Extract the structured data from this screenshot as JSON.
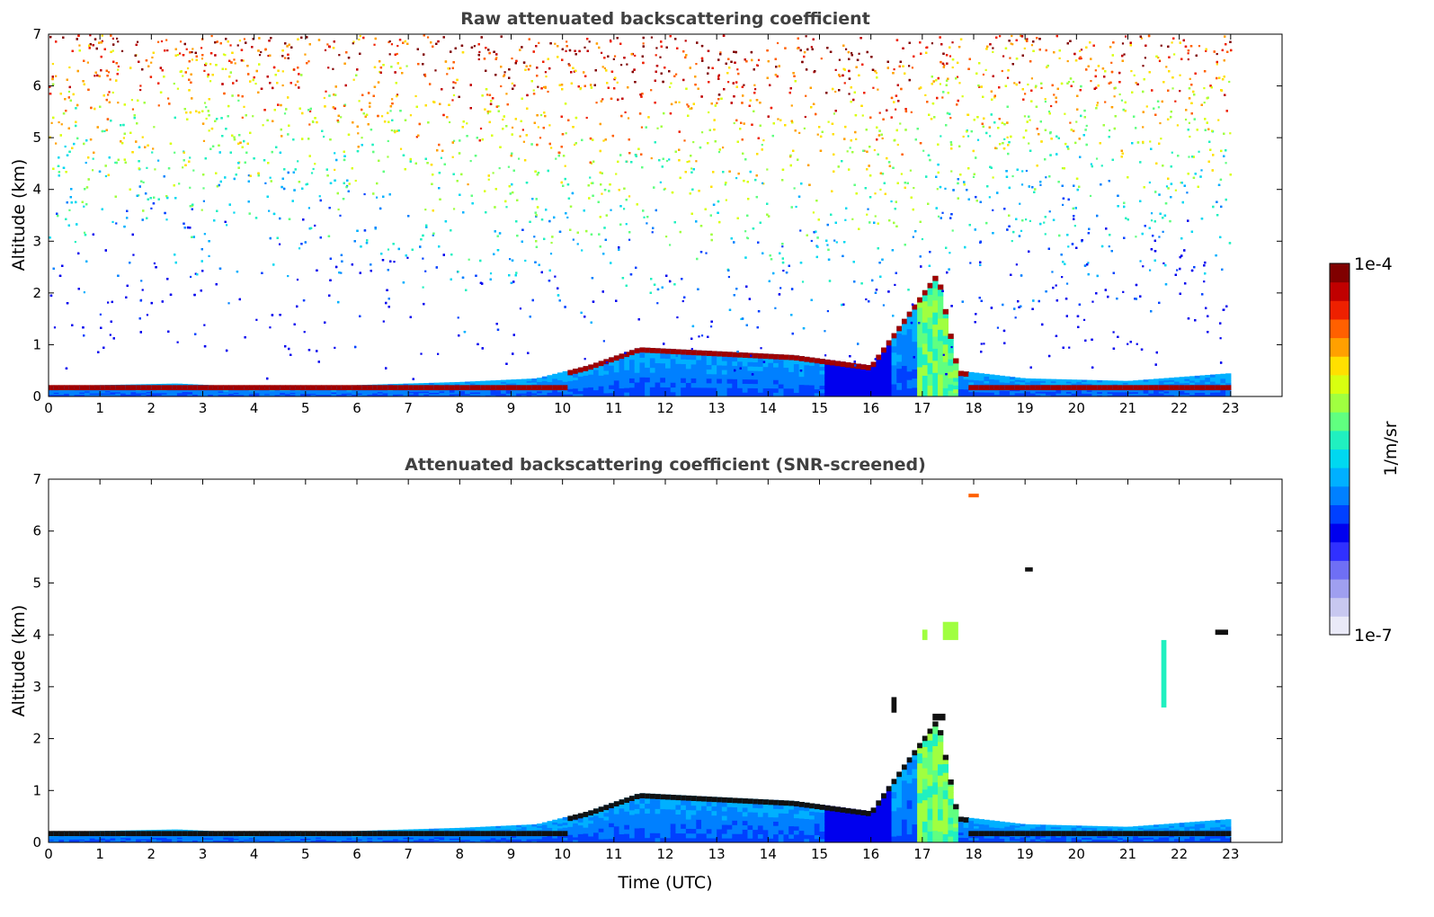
{
  "chart_data": [
    {
      "type": "heatmap",
      "title": "Raw attenuated backscattering coefficient",
      "xlabel": "",
      "ylabel": "Altitude (km)",
      "xlim": [
        0,
        24
      ],
      "ylim": [
        0,
        7
      ],
      "x_ticks": [
        "0",
        "1",
        "2",
        "3",
        "4",
        "5",
        "6",
        "7",
        "8",
        "9",
        "10",
        "11",
        "12",
        "13",
        "14",
        "15",
        "16",
        "17",
        "18",
        "19",
        "20",
        "21",
        "22",
        "23"
      ],
      "y_ticks": [
        "0",
        "1",
        "2",
        "3",
        "4",
        "5",
        "6",
        "7"
      ],
      "data_end_time": 23,
      "boundary_layer_top_km": [
        {
          "t": 0,
          "h": 0.2
        },
        {
          "t": 2.5,
          "h": 0.25
        },
        {
          "t": 4,
          "h": 0.18
        },
        {
          "t": 6,
          "h": 0.22
        },
        {
          "t": 8,
          "h": 0.28
        },
        {
          "t": 9.5,
          "h": 0.35
        },
        {
          "t": 10.5,
          "h": 0.6
        },
        {
          "t": 11.5,
          "h": 0.95
        },
        {
          "t": 12.5,
          "h": 0.9
        },
        {
          "t": 14.5,
          "h": 0.8
        },
        {
          "t": 16,
          "h": 0.6
        },
        {
          "t": 17.3,
          "h": 2.4
        },
        {
          "t": 17.7,
          "h": 0.5
        },
        {
          "t": 19,
          "h": 0.35
        },
        {
          "t": 21,
          "h": 0.3
        },
        {
          "t": 23,
          "h": 0.45
        }
      ],
      "noise_fill": "raw"
    },
    {
      "type": "heatmap",
      "title": "Attenuated backscattering coefficient (SNR-screened)",
      "xlabel": "Time (UTC)",
      "ylabel": "Altitude (km)",
      "xlim": [
        0,
        24
      ],
      "ylim": [
        0,
        7
      ],
      "x_ticks": [
        "0",
        "1",
        "2",
        "3",
        "4",
        "5",
        "6",
        "7",
        "8",
        "9",
        "10",
        "11",
        "12",
        "13",
        "14",
        "15",
        "16",
        "17",
        "18",
        "19",
        "20",
        "21",
        "22",
        "23"
      ],
      "y_ticks": [
        "0",
        "1",
        "2",
        "3",
        "4",
        "5",
        "6",
        "7"
      ],
      "data_end_time": 23,
      "cloud_features": [
        {
          "t0": 17.9,
          "t1": 18.1,
          "h0": 6.65,
          "h1": 6.72,
          "level": 0.85
        },
        {
          "t0": 17.4,
          "t1": 17.7,
          "h0": 3.9,
          "h1": 4.25,
          "level": 0.65
        },
        {
          "t0": 17.0,
          "t1": 17.1,
          "h0": 3.9,
          "h1": 4.1,
          "level": 0.65
        },
        {
          "t0": 21.65,
          "t1": 21.75,
          "h0": 2.6,
          "h1": 3.9,
          "level": 0.5
        },
        {
          "t0": 17.2,
          "t1": 17.45,
          "h0": 2.35,
          "h1": 2.48,
          "level": 1.0
        },
        {
          "t0": 16.4,
          "t1": 16.5,
          "h0": 2.5,
          "h1": 2.8,
          "level": 1.0
        },
        {
          "t0": 19.0,
          "t1": 19.15,
          "h0": 5.22,
          "h1": 5.3,
          "level": 1.0
        },
        {
          "t0": 22.7,
          "t1": 22.95,
          "h0": 4.0,
          "h1": 4.1,
          "level": 1.0
        }
      ],
      "noise_fill": "screened"
    }
  ],
  "colorbar": {
    "label": "1/m/sr",
    "max_label": "1e-4",
    "min_label": "1e-7",
    "colors": [
      "#eaeaf8",
      "#c8c8f0",
      "#9f9ff0",
      "#6f6ff5",
      "#3030ff",
      "#0000ee",
      "#0040ff",
      "#0080ff",
      "#00b0ff",
      "#00d8f0",
      "#20f0c0",
      "#60ff80",
      "#a0ff40",
      "#d8ff10",
      "#ffe000",
      "#ffa000",
      "#ff6000",
      "#ee2000",
      "#c00000",
      "#800000"
    ]
  }
}
